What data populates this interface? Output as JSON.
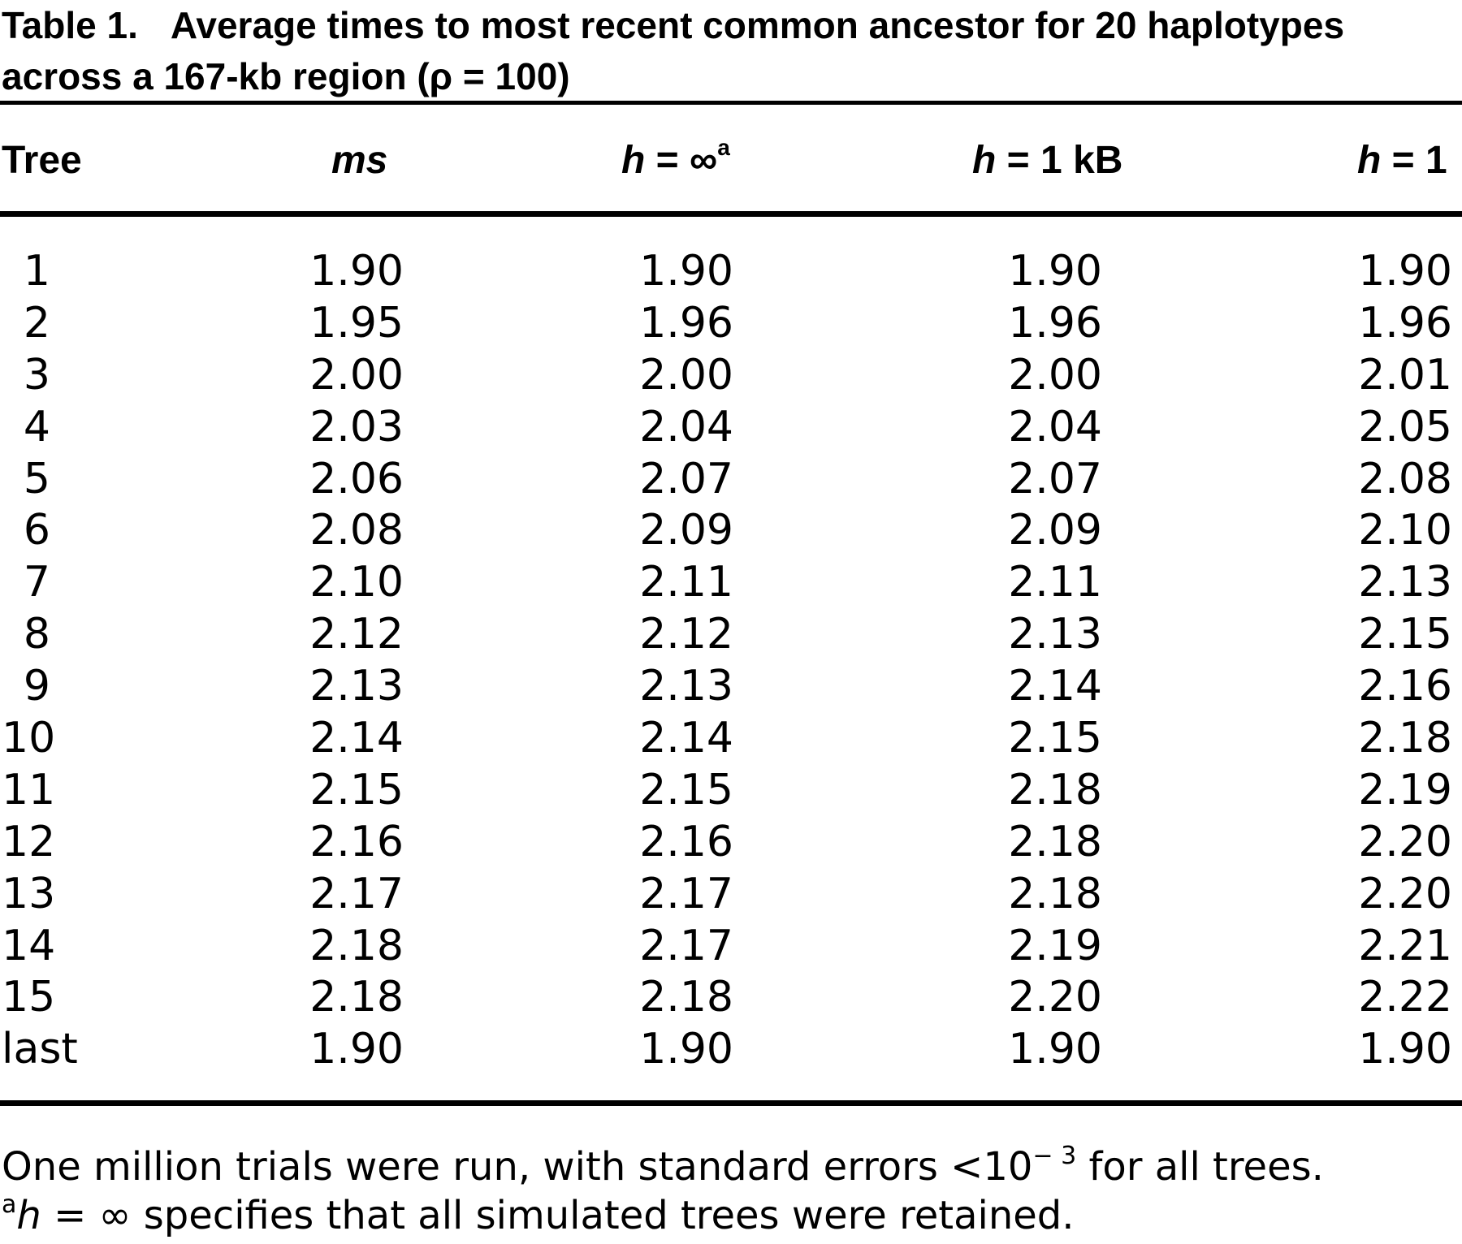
{
  "caption": {
    "label": "Table 1.",
    "text": "Average times to most recent common ancestor for 20 haplotypes across a 167-kb region (ρ = 100)"
  },
  "columns": [
    {
      "var": "",
      "text": "Tree",
      "sup": ""
    },
    {
      "var": "ms",
      "text": "",
      "sup": ""
    },
    {
      "var": "h",
      "text": " = ∞",
      "sup": "a"
    },
    {
      "var": "h",
      "text": " = 1 kB",
      "sup": ""
    },
    {
      "var": "h",
      "text": " = 1",
      "sup": ""
    }
  ],
  "rows": [
    [
      "1",
      "1.90",
      "1.90",
      "1.90",
      "1.90"
    ],
    [
      "2",
      "1.95",
      "1.96",
      "1.96",
      "1.96"
    ],
    [
      "3",
      "2.00",
      "2.00",
      "2.00",
      "2.01"
    ],
    [
      "4",
      "2.03",
      "2.04",
      "2.04",
      "2.05"
    ],
    [
      "5",
      "2.06",
      "2.07",
      "2.07",
      "2.08"
    ],
    [
      "6",
      "2.08",
      "2.09",
      "2.09",
      "2.10"
    ],
    [
      "7",
      "2.10",
      "2.11",
      "2.11",
      "2.13"
    ],
    [
      "8",
      "2.12",
      "2.12",
      "2.13",
      "2.15"
    ],
    [
      "9",
      "2.13",
      "2.13",
      "2.14",
      "2.16"
    ],
    [
      "10",
      "2.14",
      "2.14",
      "2.15",
      "2.18"
    ],
    [
      "11",
      "2.15",
      "2.15",
      "2.18",
      "2.19"
    ],
    [
      "12",
      "2.16",
      "2.16",
      "2.18",
      "2.20"
    ],
    [
      "13",
      "2.17",
      "2.17",
      "2.18",
      "2.20"
    ],
    [
      "14",
      "2.18",
      "2.17",
      "2.19",
      "2.21"
    ],
    [
      "15",
      "2.18",
      "2.18",
      "2.20",
      "2.22"
    ],
    [
      "last",
      "1.90",
      "1.90",
      "1.90",
      "1.90"
    ]
  ],
  "footnotes": {
    "line1_pre": "One million trials were run, with standard errors <10",
    "line1_exp": "− 3",
    "line1_post": " for all trees.",
    "line2_mark": "a",
    "line2_var": "h",
    "line2_text": " = ∞ specifies that all simulated trees were retained."
  }
}
